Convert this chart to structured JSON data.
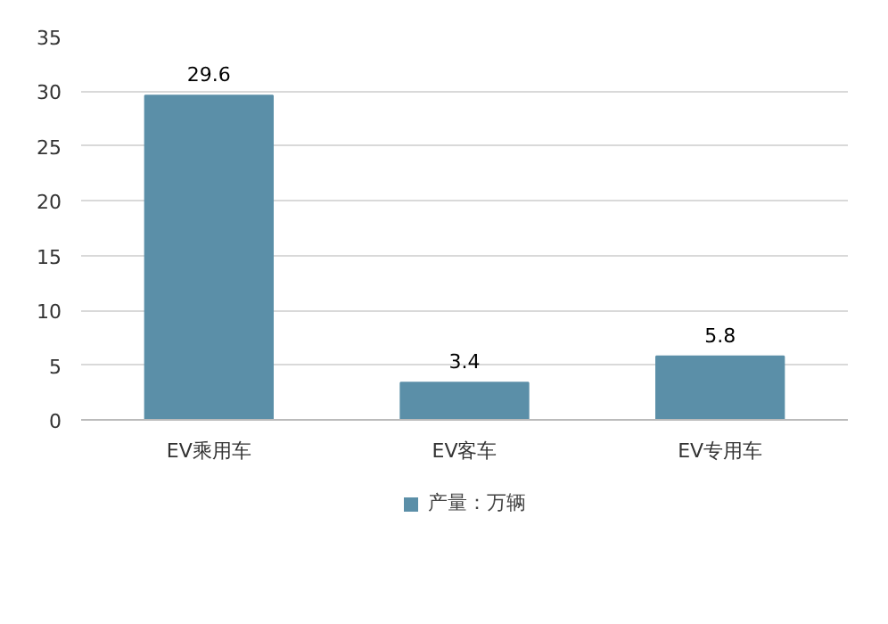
{
  "chart_data": {
    "type": "bar",
    "categories": [
      "EV乘用车",
      "EV客车",
      "EV专用车"
    ],
    "series": [
      {
        "name": "产量：万辆",
        "color": "#5b8fa8",
        "values": [
          29.6,
          3.4,
          5.8
        ]
      }
    ],
    "ylim": [
      0,
      35
    ],
    "yticks": [
      0,
      5,
      10,
      15,
      20,
      25,
      30,
      35
    ],
    "grid": "y",
    "legend": "bottom",
    "data_labels": true
  }
}
